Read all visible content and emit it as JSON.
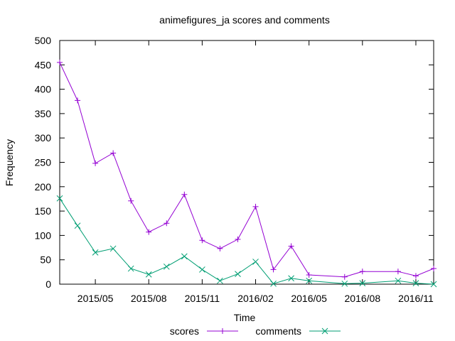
{
  "chart_data": {
    "type": "line",
    "title": "animefigures_ja scores and comments",
    "xlabel": "Time",
    "ylabel": "Frequency",
    "ylim": [
      0,
      500
    ],
    "xlim": [
      "2015-03",
      "2016-12"
    ],
    "yticks": [
      0,
      50,
      100,
      150,
      200,
      250,
      300,
      350,
      400,
      450,
      500
    ],
    "xticks": [
      {
        "date": "2015-05",
        "label": "2015/05"
      },
      {
        "date": "2015-08",
        "label": "2015/08"
      },
      {
        "date": "2015-11",
        "label": "2015/11"
      },
      {
        "date": "2016-02",
        "label": "2016/02"
      },
      {
        "date": "2016-05",
        "label": "2016/05"
      },
      {
        "date": "2016-08",
        "label": "2016/08"
      },
      {
        "date": "2016-11",
        "label": "2016/11"
      }
    ],
    "x": [
      "2015-03",
      "2015-04",
      "2015-05",
      "2015-06",
      "2015-07",
      "2015-08",
      "2015-09",
      "2015-10",
      "2015-11",
      "2015-12",
      "2016-01",
      "2016-02",
      "2016-03",
      "2016-04",
      "2016-05",
      "2016-07",
      "2016-08",
      "2016-10",
      "2016-11",
      "2016-12"
    ],
    "series": [
      {
        "name": "scores",
        "color": "#9400d3",
        "marker": "plus",
        "values": [
          455,
          377,
          248,
          269,
          171,
          107,
          125,
          184,
          90,
          73,
          92,
          159,
          30,
          78,
          19,
          15,
          26,
          26,
          17,
          32
        ]
      },
      {
        "name": "comments",
        "color": "#009e73",
        "marker": "cross",
        "values": [
          176,
          120,
          65,
          73,
          32,
          20,
          36,
          57,
          30,
          7,
          21,
          46,
          1,
          12,
          7,
          1,
          2,
          7,
          2,
          0
        ]
      }
    ],
    "grid": false,
    "legend_position": "bottom-center"
  }
}
